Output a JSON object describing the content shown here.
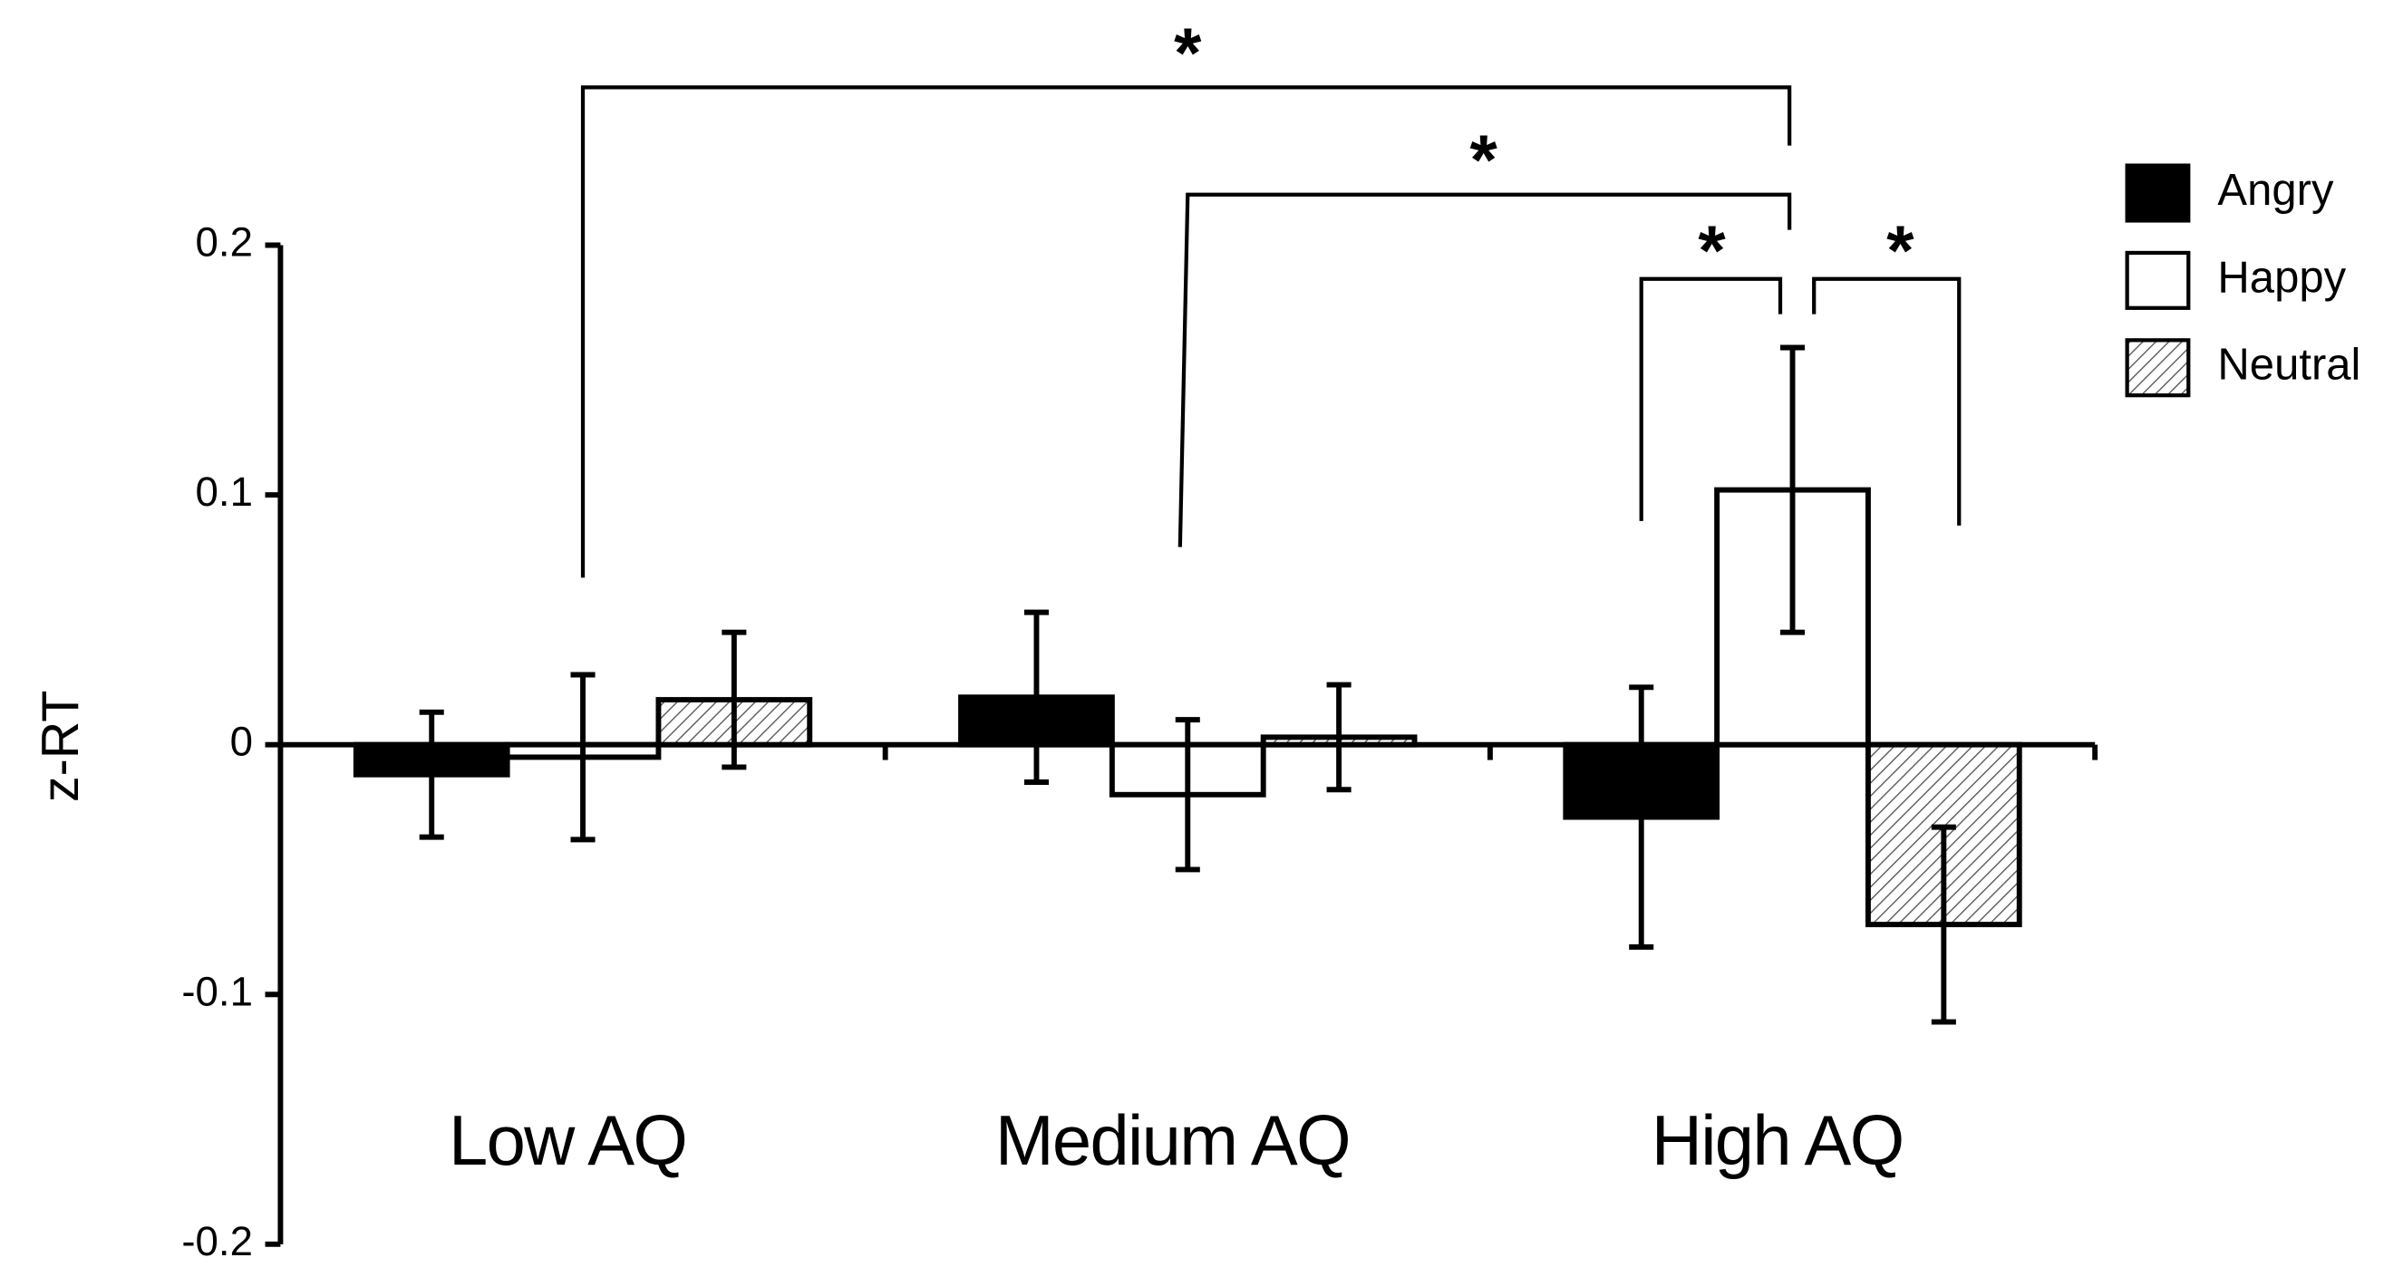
{
  "chart_data": {
    "type": "bar",
    "y_label": "z-RT",
    "categories": [
      "Low AQ",
      "Medium AQ",
      "High AQ"
    ],
    "series": [
      {
        "name": "Angry",
        "color": "#000000",
        "values": [
          -0.012,
          0.019,
          -0.029
        ],
        "errors": [
          0.025,
          0.034,
          0.052
        ]
      },
      {
        "name": "Happy",
        "color": "#ffffff",
        "values": [
          -0.005,
          -0.02,
          0.102
        ],
        "errors": [
          0.033,
          0.03,
          0.057
        ]
      },
      {
        "name": "Neutral",
        "color": "#ffffff",
        "hatch": true,
        "values": [
          0.018,
          0.003,
          -0.072
        ],
        "errors": [
          0.027,
          0.021,
          0.039
        ]
      }
    ],
    "ylim": [
      -0.2,
      0.2
    ],
    "yticks": [
      0.2,
      0.1,
      0,
      -0.1,
      -0.2
    ],
    "legend": "upper right",
    "annotations": [
      {
        "text": "*"
      },
      {
        "text": "*"
      },
      {
        "text": "*"
      },
      {
        "text": "*"
      }
    ]
  }
}
